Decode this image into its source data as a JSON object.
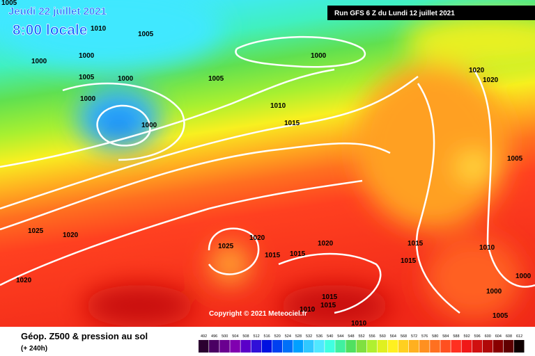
{
  "header": {
    "date": "Jeudi 22 juillet 2021",
    "time": "8:00 locale",
    "run": "Run GFS 6 Z du Lundi 12 juillet 2021"
  },
  "isobar_labels": [
    1005,
    1010,
    1005,
    1000,
    1000,
    1005,
    1000,
    1000,
    1000,
    1000,
    1005,
    1010,
    1015,
    1020,
    1020,
    1005,
    1025,
    1020,
    1020,
    1025,
    1020,
    1015,
    1015,
    1015,
    1015,
    1010,
    1000,
    1020,
    1000,
    1015,
    1015,
    1010,
    1010,
    1005
  ],
  "copyright": "Copyright © 2021 Meteociel.fr",
  "footer": {
    "title": "Géop. Z500 & pression au sol",
    "lead": "(+ 240h)"
  },
  "scale": {
    "values": [
      492,
      496,
      500,
      504,
      508,
      512,
      516,
      520,
      524,
      528,
      532,
      536,
      540,
      544,
      548,
      552,
      556,
      560,
      564,
      568,
      572,
      576,
      580,
      584,
      588,
      592,
      596,
      600,
      604,
      608,
      612
    ],
    "colors": [
      "#2b0030",
      "#4a0063",
      "#6a0090",
      "#8000b0",
      "#5a00c8",
      "#3010d8",
      "#0010e0",
      "#0040f0",
      "#0070f8",
      "#00a0ff",
      "#30c8ff",
      "#50e8ff",
      "#40ffe0",
      "#40f0a0",
      "#50e060",
      "#80e040",
      "#b0f030",
      "#e0f020",
      "#fff020",
      "#ffd020",
      "#ffb020",
      "#ff9020",
      "#ff7020",
      "#ff5020",
      "#ff3020",
      "#f01818",
      "#d01010",
      "#b00808",
      "#880000",
      "#600000",
      "#100000"
    ]
  }
}
